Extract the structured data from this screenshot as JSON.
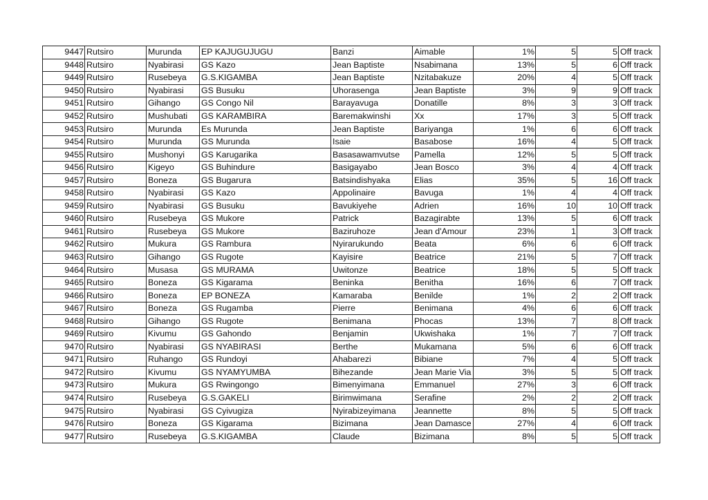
{
  "table": {
    "rows": [
      [
        "9447",
        "Rutsiro",
        "Murunda",
        "EP KAJUGUJUGU",
        "Banzi",
        "Aimable",
        "1%",
        "5",
        "5",
        "Off track"
      ],
      [
        "9448",
        "Rutsiro",
        "Nyabirasi",
        "GS Kazo",
        "Jean Baptiste",
        "Nsabimana",
        "13%",
        "5",
        "6",
        "Off track"
      ],
      [
        "9449",
        "Rutsiro",
        "Rusebeya",
        "G.S.KIGAMBA",
        "Jean Baptiste",
        "Nzitabakuze",
        "20%",
        "4",
        "5",
        "Off track"
      ],
      [
        "9450",
        "Rutsiro",
        "Nyabirasi",
        "GS Busuku",
        "Uhorasenga",
        "Jean Baptiste",
        "3%",
        "9",
        "9",
        "Off track"
      ],
      [
        "9451",
        "Rutsiro",
        "Gihango",
        "GS Congo Nil",
        "Barayavuga",
        "Donatille",
        "8%",
        "3",
        "3",
        "Off track"
      ],
      [
        "9452",
        "Rutsiro",
        "Mushubati",
        "GS KARAMBIRA",
        "Baremakwinshi",
        "Xx",
        "17%",
        "3",
        "5",
        "Off track"
      ],
      [
        "9453",
        "Rutsiro",
        "Murunda",
        "Es Murunda",
        "Jean Baptiste",
        "Bariyanga",
        "1%",
        "6",
        "6",
        "Off track"
      ],
      [
        "9454",
        "Rutsiro",
        "Murunda",
        "GS Murunda",
        "Isaie",
        "Basabose",
        "16%",
        "4",
        "5",
        "Off track"
      ],
      [
        "9455",
        "Rutsiro",
        "Mushonyi",
        "GS Karugarika",
        "Basasawamvutse",
        "Pamella",
        "12%",
        "5",
        "5",
        "Off track"
      ],
      [
        "9456",
        "Rutsiro",
        "Kigeyo",
        "GS Buhindure",
        "Basigayabo",
        "Jean Bosco",
        "3%",
        "4",
        "4",
        "Off track"
      ],
      [
        "9457",
        "Rutsiro",
        "Boneza",
        "GS Bugarura",
        "Batsindishyaka",
        "Elias",
        "35%",
        "5",
        "16",
        "Off track"
      ],
      [
        "9458",
        "Rutsiro",
        "Nyabirasi",
        "GS Kazo",
        "Appolinaire",
        "Bavuga",
        "1%",
        "4",
        "4",
        "Off track"
      ],
      [
        "9459",
        "Rutsiro",
        "Nyabirasi",
        "GS Busuku",
        "Bavukiyehe",
        "Adrien",
        "16%",
        "10",
        "10",
        "Off track"
      ],
      [
        "9460",
        "Rutsiro",
        "Rusebeya",
        "GS Mukore",
        "Patrick",
        "Bazagirabte",
        "13%",
        "5",
        "6",
        "Off track"
      ],
      [
        "9461",
        "Rutsiro",
        "Rusebeya",
        "GS Mukore",
        "Baziruhoze",
        "Jean d'Amour",
        "23%",
        "1",
        "3",
        "Off track"
      ],
      [
        "9462",
        "Rutsiro",
        "Mukura",
        "GS Rambura",
        "Nyirarukundo",
        "Beata",
        "6%",
        "6",
        "6",
        "Off track"
      ],
      [
        "9463",
        "Rutsiro",
        "Gihango",
        "GS Rugote",
        "Kayisire",
        "Beatrice",
        "21%",
        "5",
        "7",
        "Off track"
      ],
      [
        "9464",
        "Rutsiro",
        "Musasa",
        "GS MURAMA",
        "Uwitonze",
        "Beatrice",
        "18%",
        "5",
        "5",
        "Off track"
      ],
      [
        "9465",
        "Rutsiro",
        "Boneza",
        "GS Kigarama",
        "Beninka",
        "Benitha",
        "16%",
        "6",
        "7",
        "Off track"
      ],
      [
        "9466",
        "Rutsiro",
        "Boneza",
        "EP BONEZA",
        "Kamaraba",
        "Benilde",
        "1%",
        "2",
        "2",
        "Off track"
      ],
      [
        "9467",
        "Rutsiro",
        "Boneza",
        "GS Rugamba",
        "Pierre",
        "Benimana",
        "4%",
        "6",
        "6",
        "Off track"
      ],
      [
        "9468",
        "Rutsiro",
        "Gihango",
        "GS Rugote",
        "Benimana",
        "Phocas",
        "13%",
        "7",
        "8",
        "Off track"
      ],
      [
        "9469",
        "Rutsiro",
        "Kivumu",
        "GS Gahondo",
        "Benjamin",
        "Ukwishaka",
        "1%",
        "7",
        "7",
        "Off track"
      ],
      [
        "9470",
        "Rutsiro",
        "Nyabirasi",
        "GS NYABIRASI",
        "Berthe",
        "Mukamana",
        "5%",
        "6",
        "6",
        "Off track"
      ],
      [
        "9471",
        "Rutsiro",
        "Ruhango",
        "GS Rundoyi",
        "Ahabarezi",
        "Bibiane",
        "7%",
        "4",
        "5",
        "Off track"
      ],
      [
        "9472",
        "Rutsiro",
        "Kivumu",
        "GS NYAMYUMBA",
        "Bihezande",
        "Jean Marie Via",
        "3%",
        "5",
        "5",
        "Off track"
      ],
      [
        "9473",
        "Rutsiro",
        "Mukura",
        "GS Rwingongo",
        "Bimenyimana",
        "Emmanuel",
        "27%",
        "3",
        "6",
        "Off track"
      ],
      [
        "9474",
        "Rutsiro",
        "Rusebeya",
        "G.S.GAKELI",
        "Birimwimana",
        "Serafine",
        "2%",
        "2",
        "2",
        "Off track"
      ],
      [
        "9475",
        "Rutsiro",
        "Nyabirasi",
        "GS Cyivugiza",
        "Nyirabizeyimana",
        "Jeannette",
        "8%",
        "5",
        "5",
        "Off track"
      ],
      [
        "9476",
        "Rutsiro",
        "Boneza",
        "GS Kigarama",
        "Bizimana",
        "Jean Damasce",
        "27%",
        "4",
        "6",
        "Off track"
      ],
      [
        "9477",
        "Rutsiro",
        "Rusebeya",
        "G.S.KIGAMBA",
        "Claude",
        "Bizimana",
        "8%",
        "5",
        "5",
        "Off track"
      ]
    ]
  }
}
